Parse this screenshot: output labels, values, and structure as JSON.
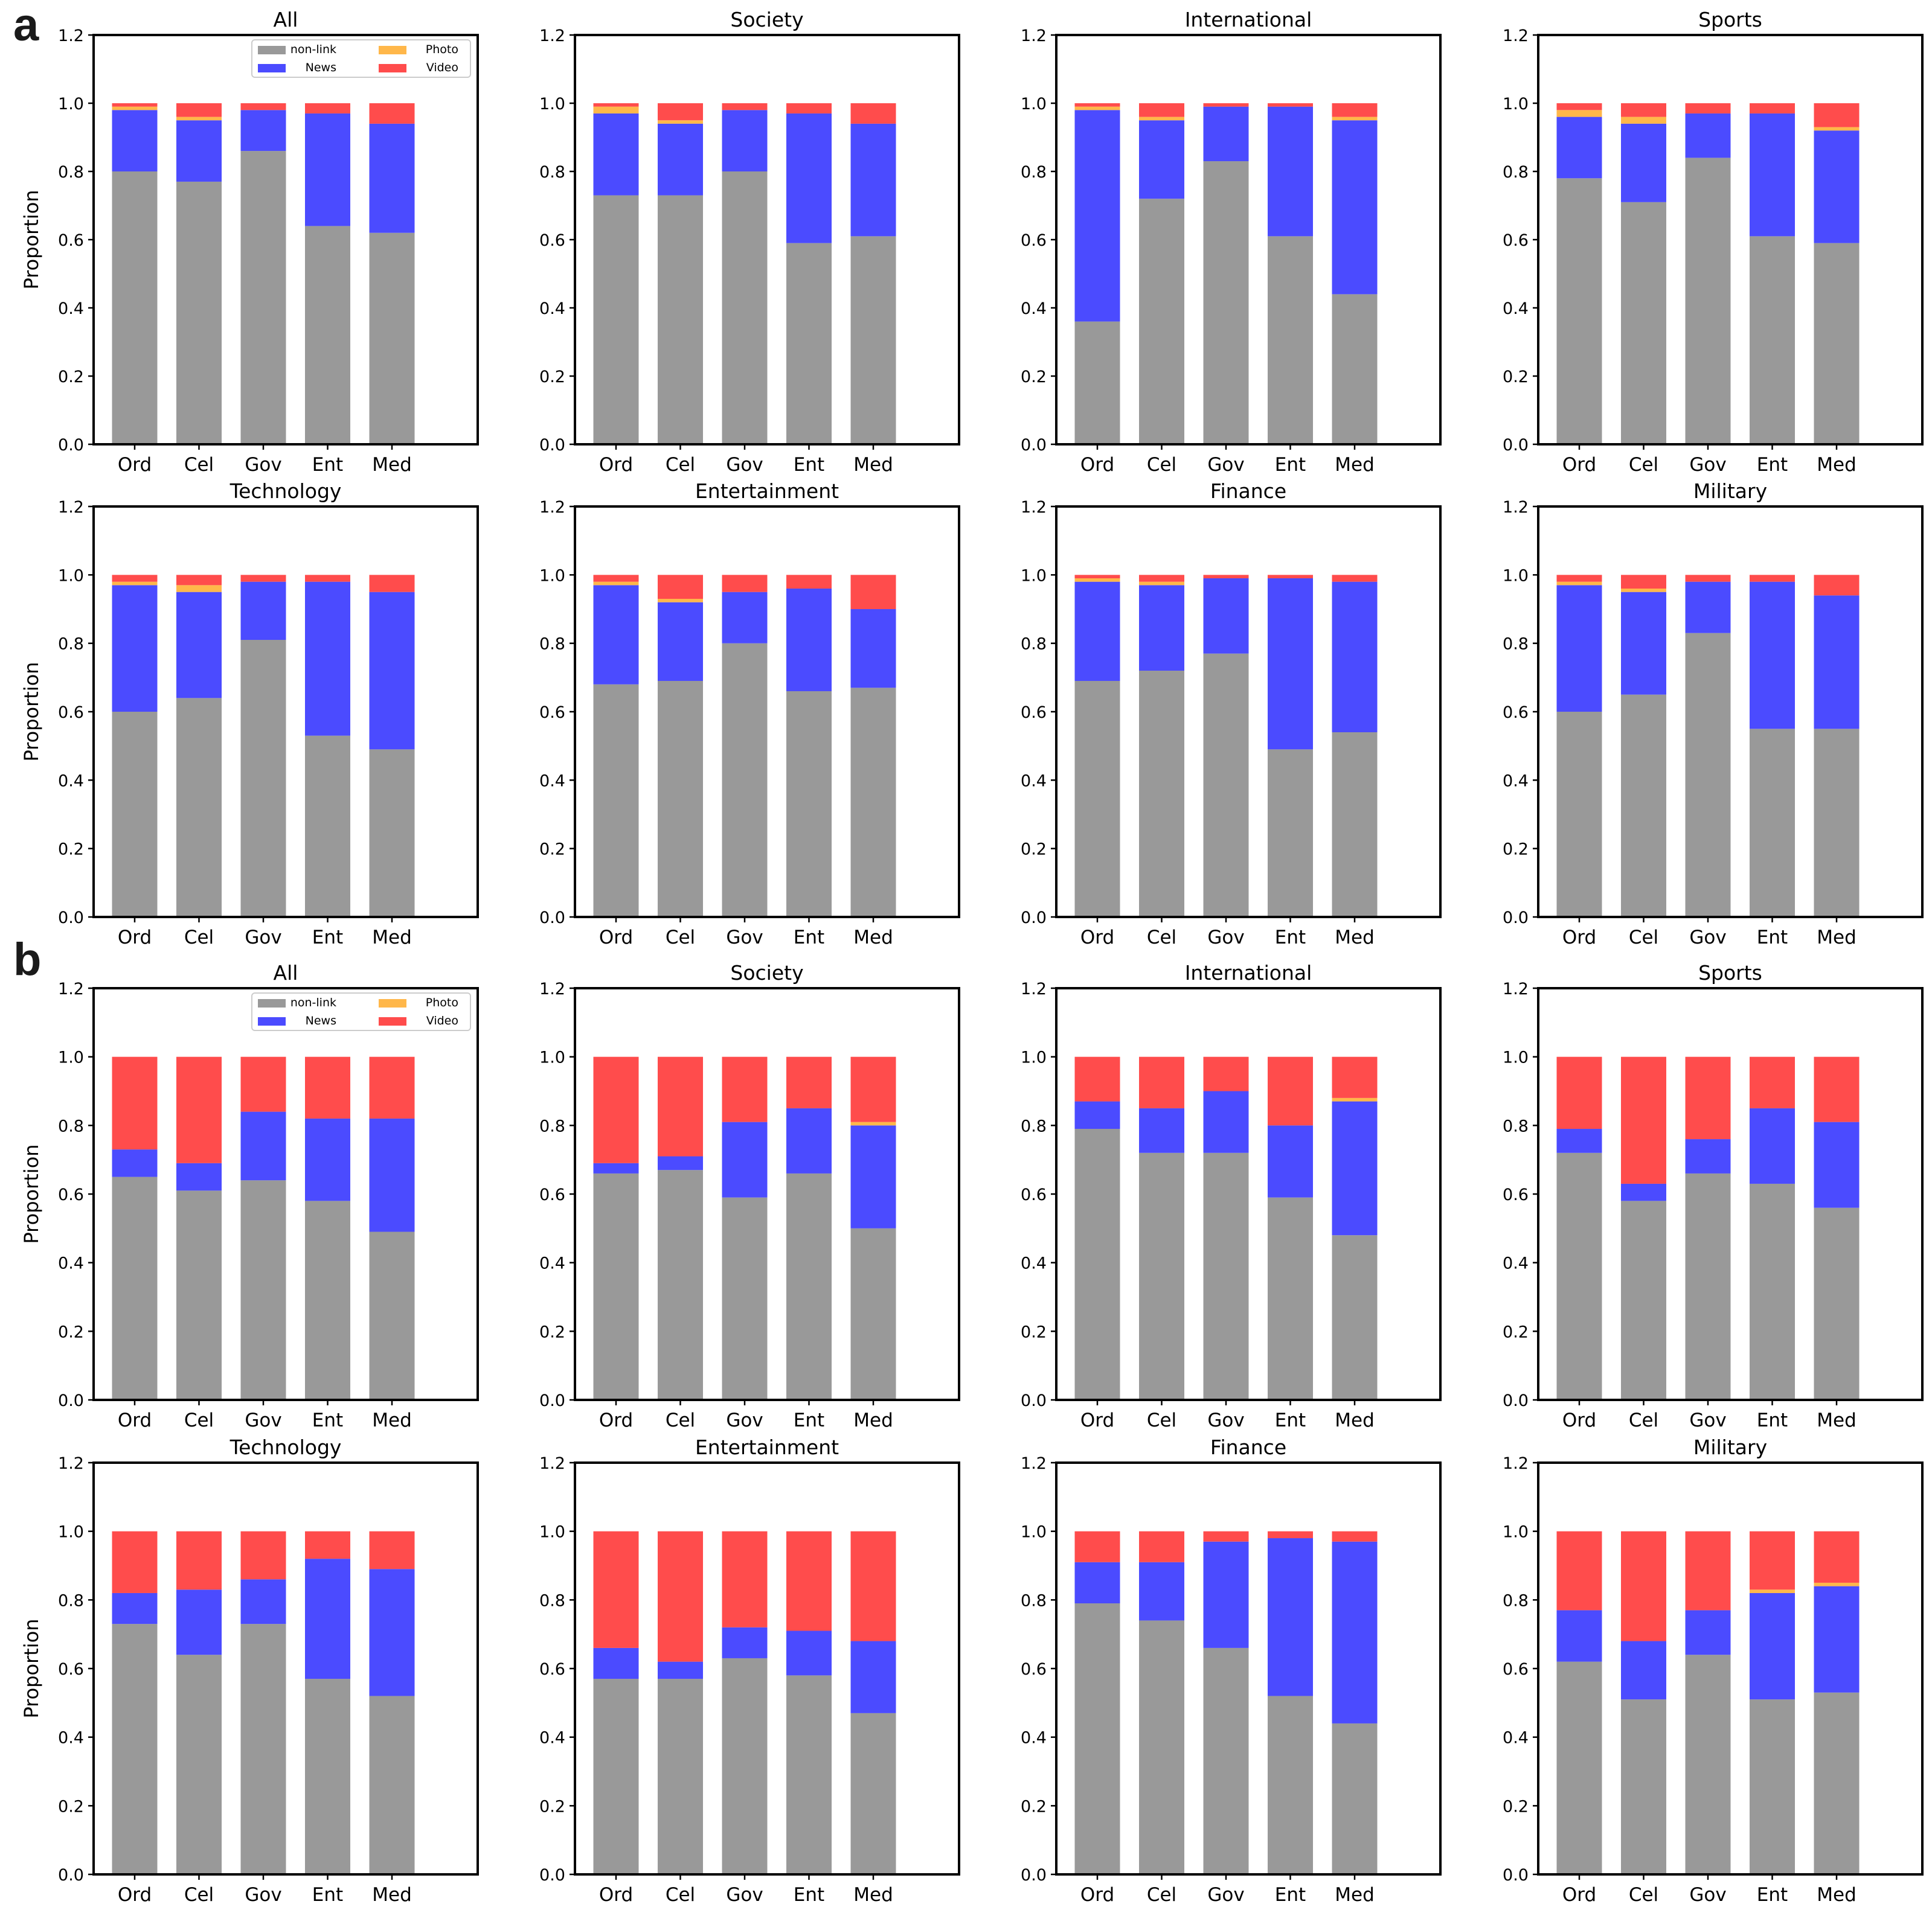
{
  "figure": {
    "panel_labels": [
      "a",
      "b"
    ],
    "colors": {
      "non-link": "#999999",
      "News": "#4b4bff",
      "Photo": "#ffb74a",
      "Video": "#ff4c4c"
    }
  },
  "chart_data": [
    {
      "panel": "a",
      "type": "bar",
      "stacked": true,
      "ylabel": "Proportion",
      "ylim": [
        0,
        1.2
      ],
      "yticks": [
        "0.0",
        "0.2",
        "0.4",
        "0.6",
        "0.8",
        "1.0",
        "1.2"
      ],
      "categories": [
        "Ord",
        "Cel",
        "Gov",
        "Ent",
        "Med"
      ],
      "legend": {
        "entries": [
          "non-link",
          "News",
          "Photo",
          "Video"
        ],
        "location": "top-right of first subplot"
      },
      "subplots": [
        {
          "title": "All",
          "series": [
            {
              "name": "non-link",
              "values": [
                0.8,
                0.77,
                0.86,
                0.64,
                0.62
              ]
            },
            {
              "name": "News",
              "values": [
                0.18,
                0.18,
                0.12,
                0.33,
                0.32
              ]
            },
            {
              "name": "Photo",
              "values": [
                0.01,
                0.01,
                0.0,
                0.0,
                0.0
              ]
            },
            {
              "name": "Video",
              "values": [
                0.01,
                0.04,
                0.02,
                0.03,
                0.06
              ]
            }
          ]
        },
        {
          "title": "Society",
          "series": [
            {
              "name": "non-link",
              "values": [
                0.73,
                0.73,
                0.8,
                0.59,
                0.61
              ]
            },
            {
              "name": "News",
              "values": [
                0.24,
                0.21,
                0.18,
                0.38,
                0.33
              ]
            },
            {
              "name": "Photo",
              "values": [
                0.02,
                0.01,
                0.0,
                0.0,
                0.0
              ]
            },
            {
              "name": "Video",
              "values": [
                0.01,
                0.05,
                0.02,
                0.03,
                0.06
              ]
            }
          ]
        },
        {
          "title": "International",
          "series": [
            {
              "name": "non-link",
              "values": [
                0.36,
                0.72,
                0.83,
                0.61,
                0.44
              ]
            },
            {
              "name": "News",
              "values": [
                0.62,
                0.23,
                0.16,
                0.38,
                0.51
              ]
            },
            {
              "name": "Photo",
              "values": [
                0.01,
                0.01,
                0.0,
                0.0,
                0.01
              ]
            },
            {
              "name": "Video",
              "values": [
                0.01,
                0.04,
                0.01,
                0.01,
                0.04
              ]
            }
          ]
        },
        {
          "title": "Sports",
          "series": [
            {
              "name": "non-link",
              "values": [
                0.78,
                0.71,
                0.84,
                0.61,
                0.59
              ]
            },
            {
              "name": "News",
              "values": [
                0.18,
                0.23,
                0.13,
                0.36,
                0.33
              ]
            },
            {
              "name": "Photo",
              "values": [
                0.02,
                0.02,
                0.0,
                0.0,
                0.01
              ]
            },
            {
              "name": "Video",
              "values": [
                0.02,
                0.04,
                0.03,
                0.03,
                0.07
              ]
            }
          ]
        },
        {
          "title": "Technology",
          "series": [
            {
              "name": "non-link",
              "values": [
                0.6,
                0.64,
                0.81,
                0.53,
                0.49
              ]
            },
            {
              "name": "News",
              "values": [
                0.37,
                0.31,
                0.17,
                0.45,
                0.46
              ]
            },
            {
              "name": "Photo",
              "values": [
                0.01,
                0.02,
                0.0,
                0.0,
                0.0
              ]
            },
            {
              "name": "Video",
              "values": [
                0.02,
                0.03,
                0.02,
                0.02,
                0.05
              ]
            }
          ]
        },
        {
          "title": "Entertainment",
          "series": [
            {
              "name": "non-link",
              "values": [
                0.68,
                0.69,
                0.8,
                0.66,
                0.67
              ]
            },
            {
              "name": "News",
              "values": [
                0.29,
                0.23,
                0.15,
                0.3,
                0.23
              ]
            },
            {
              "name": "Photo",
              "values": [
                0.01,
                0.01,
                0.0,
                0.0,
                0.0
              ]
            },
            {
              "name": "Video",
              "values": [
                0.02,
                0.07,
                0.05,
                0.04,
                0.1
              ]
            }
          ]
        },
        {
          "title": "Finance",
          "series": [
            {
              "name": "non-link",
              "values": [
                0.69,
                0.72,
                0.77,
                0.49,
                0.54
              ]
            },
            {
              "name": "News",
              "values": [
                0.29,
                0.25,
                0.22,
                0.5,
                0.44
              ]
            },
            {
              "name": "Photo",
              "values": [
                0.01,
                0.01,
                0.0,
                0.0,
                0.0
              ]
            },
            {
              "name": "Video",
              "values": [
                0.01,
                0.02,
                0.01,
                0.01,
                0.02
              ]
            }
          ]
        },
        {
          "title": "Military",
          "series": [
            {
              "name": "non-link",
              "values": [
                0.6,
                0.65,
                0.83,
                0.55,
                0.55
              ]
            },
            {
              "name": "News",
              "values": [
                0.37,
                0.3,
                0.15,
                0.43,
                0.39
              ]
            },
            {
              "name": "Photo",
              "values": [
                0.01,
                0.01,
                0.0,
                0.0,
                0.0
              ]
            },
            {
              "name": "Video",
              "values": [
                0.02,
                0.04,
                0.02,
                0.02,
                0.06
              ]
            }
          ]
        }
      ]
    },
    {
      "panel": "b",
      "type": "bar",
      "stacked": true,
      "ylabel": "Proportion",
      "ylim": [
        0,
        1.2
      ],
      "yticks": [
        "0.0",
        "0.2",
        "0.4",
        "0.6",
        "0.8",
        "1.0",
        "1.2"
      ],
      "categories": [
        "Ord",
        "Cel",
        "Gov",
        "Ent",
        "Med"
      ],
      "legend": {
        "entries": [
          "non-link",
          "News",
          "Photo",
          "Video"
        ],
        "location": "top-right of first subplot"
      },
      "subplots": [
        {
          "title": "All",
          "series": [
            {
              "name": "non-link",
              "values": [
                0.65,
                0.61,
                0.64,
                0.58,
                0.49
              ]
            },
            {
              "name": "News",
              "values": [
                0.08,
                0.08,
                0.2,
                0.24,
                0.33
              ]
            },
            {
              "name": "Photo",
              "values": [
                0.0,
                0.0,
                0.0,
                0.0,
                0.0
              ]
            },
            {
              "name": "Video",
              "values": [
                0.27,
                0.31,
                0.16,
                0.18,
                0.18
              ]
            }
          ]
        },
        {
          "title": "Society",
          "series": [
            {
              "name": "non-link",
              "values": [
                0.66,
                0.67,
                0.59,
                0.66,
                0.5
              ]
            },
            {
              "name": "News",
              "values": [
                0.03,
                0.04,
                0.22,
                0.19,
                0.3
              ]
            },
            {
              "name": "Photo",
              "values": [
                0.0,
                0.0,
                0.0,
                0.0,
                0.01
              ]
            },
            {
              "name": "Video",
              "values": [
                0.31,
                0.29,
                0.19,
                0.15,
                0.19
              ]
            }
          ]
        },
        {
          "title": "International",
          "series": [
            {
              "name": "non-link",
              "values": [
                0.79,
                0.72,
                0.72,
                0.59,
                0.48
              ]
            },
            {
              "name": "News",
              "values": [
                0.08,
                0.13,
                0.18,
                0.21,
                0.39
              ]
            },
            {
              "name": "Photo",
              "values": [
                0.0,
                0.0,
                0.0,
                0.0,
                0.01
              ]
            },
            {
              "name": "Video",
              "values": [
                0.13,
                0.15,
                0.1,
                0.2,
                0.12
              ]
            }
          ]
        },
        {
          "title": "Sports",
          "series": [
            {
              "name": "non-link",
              "values": [
                0.72,
                0.58,
                0.66,
                0.63,
                0.56
              ]
            },
            {
              "name": "News",
              "values": [
                0.07,
                0.05,
                0.1,
                0.22,
                0.25
              ]
            },
            {
              "name": "Photo",
              "values": [
                0.0,
                0.0,
                0.0,
                0.0,
                0.0
              ]
            },
            {
              "name": "Video",
              "values": [
                0.21,
                0.37,
                0.24,
                0.15,
                0.19
              ]
            }
          ]
        },
        {
          "title": "Technology",
          "series": [
            {
              "name": "non-link",
              "values": [
                0.73,
                0.64,
                0.73,
                0.57,
                0.52
              ]
            },
            {
              "name": "News",
              "values": [
                0.09,
                0.19,
                0.13,
                0.35,
                0.37
              ]
            },
            {
              "name": "Photo",
              "values": [
                0.0,
                0.0,
                0.0,
                0.0,
                0.0
              ]
            },
            {
              "name": "Video",
              "values": [
                0.18,
                0.17,
                0.14,
                0.08,
                0.11
              ]
            }
          ]
        },
        {
          "title": "Entertainment",
          "series": [
            {
              "name": "non-link",
              "values": [
                0.57,
                0.57,
                0.63,
                0.58,
                0.47
              ]
            },
            {
              "name": "News",
              "values": [
                0.09,
                0.05,
                0.09,
                0.13,
                0.21
              ]
            },
            {
              "name": "Photo",
              "values": [
                0.0,
                0.0,
                0.0,
                0.0,
                0.0
              ]
            },
            {
              "name": "Video",
              "values": [
                0.34,
                0.38,
                0.28,
                0.29,
                0.32
              ]
            }
          ]
        },
        {
          "title": "Finance",
          "series": [
            {
              "name": "non-link",
              "values": [
                0.79,
                0.74,
                0.66,
                0.52,
                0.44
              ]
            },
            {
              "name": "News",
              "values": [
                0.12,
                0.17,
                0.31,
                0.46,
                0.53
              ]
            },
            {
              "name": "Photo",
              "values": [
                0.0,
                0.0,
                0.0,
                0.0,
                0.0
              ]
            },
            {
              "name": "Video",
              "values": [
                0.09,
                0.09,
                0.03,
                0.02,
                0.03
              ]
            }
          ]
        },
        {
          "title": "Military",
          "series": [
            {
              "name": "non-link",
              "values": [
                0.62,
                0.51,
                0.64,
                0.51,
                0.53
              ]
            },
            {
              "name": "News",
              "values": [
                0.15,
                0.17,
                0.13,
                0.31,
                0.31
              ]
            },
            {
              "name": "Photo",
              "values": [
                0.0,
                0.0,
                0.0,
                0.01,
                0.01
              ]
            },
            {
              "name": "Video",
              "values": [
                0.23,
                0.32,
                0.23,
                0.17,
                0.15
              ]
            }
          ]
        }
      ]
    }
  ]
}
